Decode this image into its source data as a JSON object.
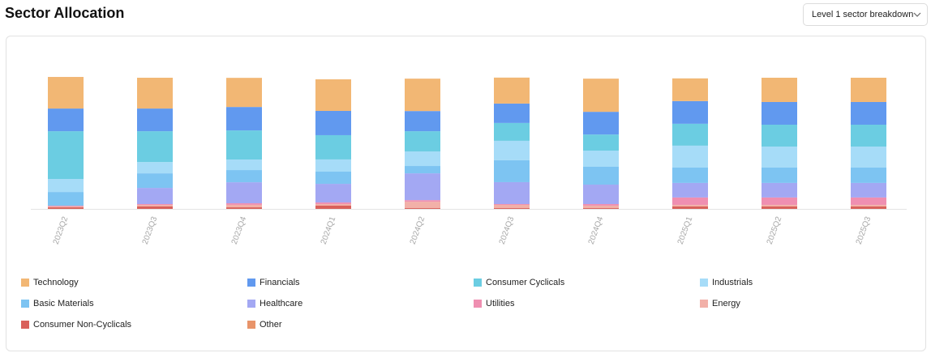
{
  "header": {
    "title": "Sector Allocation",
    "dropdown_value": "Level 1 sector breakdown",
    "dropdown_icon": "chevron-down-icon"
  },
  "chart_data": {
    "type": "bar",
    "stacked": true,
    "normalized_percent": true,
    "title": "Sector Allocation",
    "xlabel": "",
    "ylabel": "",
    "ylim": [
      0,
      100
    ],
    "grid": false,
    "legend_position": "bottom",
    "categories": [
      "2023Q2",
      "2023Q3",
      "2023Q4",
      "2024Q1",
      "2024Q2",
      "2024Q3",
      "2024Q4",
      "2025Q1",
      "2025Q2",
      "2025Q3"
    ],
    "series": [
      {
        "name": "Consumer Non-Cyclicals",
        "color": "#d9615b",
        "values": [
          1.2,
          1.9,
          1.2,
          2.5,
          0.6,
          0.6,
          0.6,
          1.9,
          1.9,
          1.9
        ]
      },
      {
        "name": "Other",
        "color": "#e8946a",
        "values": [
          0,
          0,
          0,
          0,
          0,
          0,
          0,
          0,
          0,
          0
        ]
      },
      {
        "name": "Energy",
        "color": "#f2b0a8",
        "values": [
          0.6,
          1.2,
          1.9,
          1.2,
          4.9,
          2.5,
          1.9,
          1.2,
          1.2,
          1.2
        ]
      },
      {
        "name": "Utilities",
        "color": "#ef8fb1",
        "values": [
          0.6,
          0.6,
          1.2,
          1.2,
          1.2,
          0.6,
          1.2,
          5.6,
          5.6,
          5.6
        ]
      },
      {
        "name": "Healthcare",
        "color": "#a3a8f3",
        "values": [
          0,
          12.3,
          16.0,
          14.2,
          20.4,
          16.7,
          14.8,
          11.1,
          11.1,
          11.1
        ]
      },
      {
        "name": "Basic Materials",
        "color": "#7dc4f2",
        "values": [
          10.5,
          11.1,
          9.3,
          9.3,
          5.6,
          16.7,
          13.6,
          11.7,
          11.7,
          11.7
        ]
      },
      {
        "name": "Industrials",
        "color": "#a6dcf8",
        "values": [
          9.9,
          8.6,
          8.0,
          9.3,
          11.1,
          14.8,
          12.3,
          16.7,
          16.0,
          16.0
        ]
      },
      {
        "name": "Consumer Cyclicals",
        "color": "#6bcde2",
        "values": [
          36.4,
          23.5,
          22.2,
          18.5,
          15.4,
          13.6,
          12.3,
          16.7,
          16.7,
          16.7
        ]
      },
      {
        "name": "Financials",
        "color": "#6199ef",
        "values": [
          17.3,
          17.3,
          17.9,
          18.5,
          15.4,
          14.8,
          17.3,
          17.3,
          17.3,
          17.3
        ]
      },
      {
        "name": "Technology",
        "color": "#f2b774",
        "values": [
          24.1,
          23.5,
          22.2,
          24.1,
          24.7,
          19.8,
          25.3,
          17.3,
          18.5,
          18.5
        ]
      }
    ]
  },
  "legend": {
    "items": [
      {
        "label": "Technology",
        "color": "#f2b774"
      },
      {
        "label": "Financials",
        "color": "#6199ef"
      },
      {
        "label": "Consumer Cyclicals",
        "color": "#6bcde2"
      },
      {
        "label": "Industrials",
        "color": "#a6dcf8"
      },
      {
        "label": "Basic Materials",
        "color": "#7dc4f2"
      },
      {
        "label": "Healthcare",
        "color": "#a3a8f3"
      },
      {
        "label": "Utilities",
        "color": "#ef8fb1"
      },
      {
        "label": "Energy",
        "color": "#f2b0a8"
      },
      {
        "label": "Consumer Non-Cyclicals",
        "color": "#d9615b"
      },
      {
        "label": "Other",
        "color": "#e8946a"
      }
    ]
  }
}
